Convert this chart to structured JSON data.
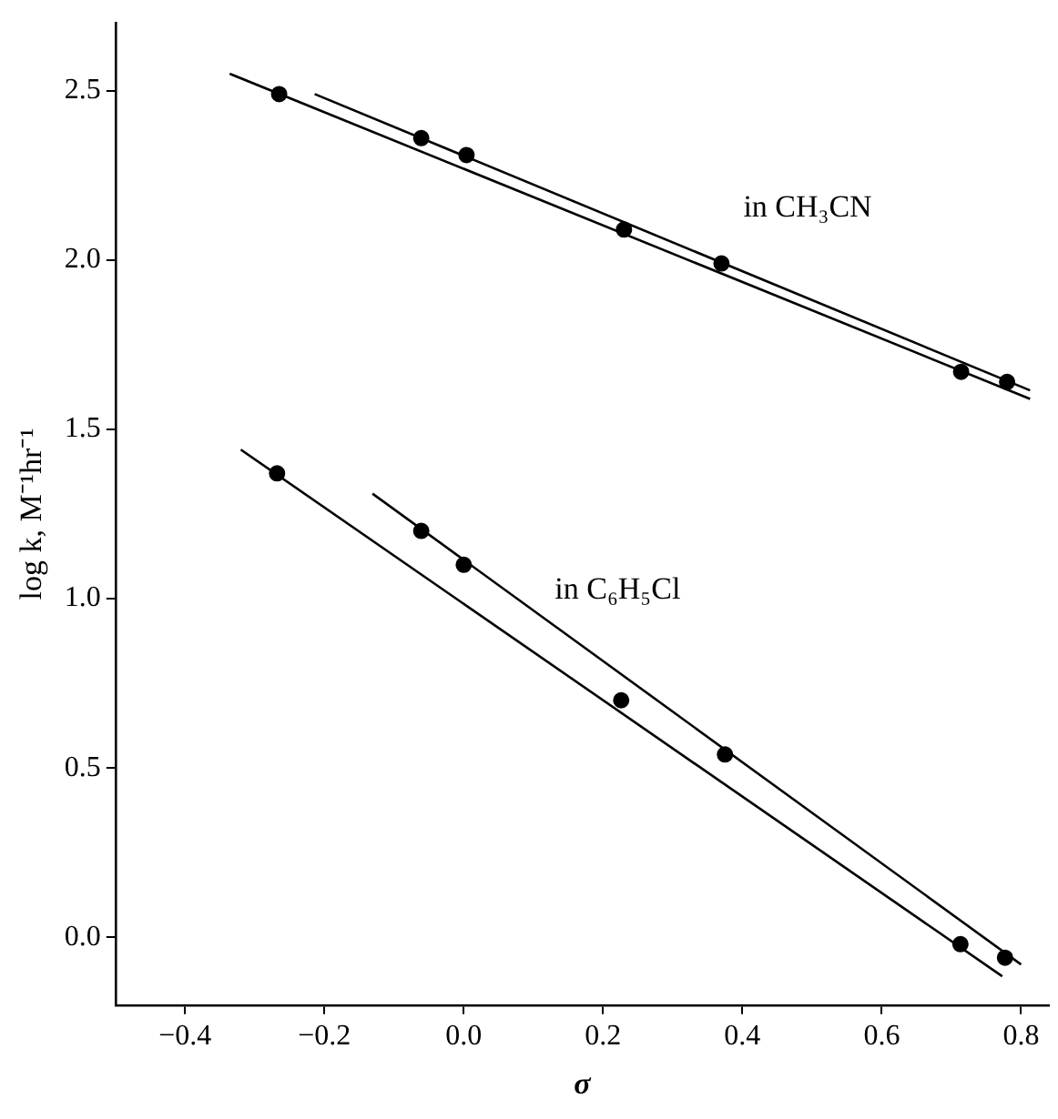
{
  "chart_data": {
    "type": "scatter",
    "xlabel": "σ",
    "ylabel": "log k, M⁻¹hr⁻¹",
    "xlim": [
      -0.5,
      0.84
    ],
    "ylim": [
      -0.2,
      2.7
    ],
    "xticks": [
      {
        "value": -0.4,
        "label": "−0.4"
      },
      {
        "value": -0.2,
        "label": "−0.2"
      },
      {
        "value": 0,
        "label": "0.0"
      },
      0.2,
      0.4,
      0.6,
      0.8
    ],
    "yticks": [
      {
        "value": 0,
        "label": "0.0"
      },
      0.5,
      {
        "value": 1,
        "label": "1.0"
      },
      1.5,
      {
        "value": 2,
        "label": "2.0"
      },
      2.5
    ],
    "grid": false,
    "legend": false,
    "marker": "circle",
    "series": [
      {
        "name": "in CH₃CN",
        "color": "#000000",
        "x": [
          -0.265,
          -0.061,
          0.004,
          0.23,
          0.37,
          0.714,
          0.78
        ],
        "values": [
          2.49,
          2.36,
          2.31,
          2.09,
          1.99,
          1.67,
          1.64
        ]
      },
      {
        "name": "in C₆H₅Cl",
        "color": "#000000",
        "x": [
          -0.268,
          -0.061,
          0.0,
          0.226,
          0.375,
          0.713,
          0.777
        ],
        "values": [
          1.37,
          1.2,
          1.1,
          0.7,
          0.54,
          -0.02,
          -0.06
        ]
      },
      {
        "type": "line",
        "color": "#000000",
        "marker": "none",
        "x": [
          -0.336,
          0.813
        ],
        "values": [
          2.55,
          1.59
        ]
      },
      {
        "type": "line",
        "color": "#000000",
        "marker": "none",
        "x": [
          -0.214,
          0.813
        ],
        "values": [
          2.49,
          1.615
        ]
      },
      {
        "type": "line",
        "color": "#000000",
        "marker": "none",
        "x": [
          -0.32,
          0.773
        ],
        "values": [
          1.44,
          -0.115
        ]
      },
      {
        "type": "line",
        "color": "#000000",
        "marker": "none",
        "x": [
          -0.131,
          0.8
        ],
        "values": [
          1.31,
          -0.08
        ]
      }
    ]
  }
}
